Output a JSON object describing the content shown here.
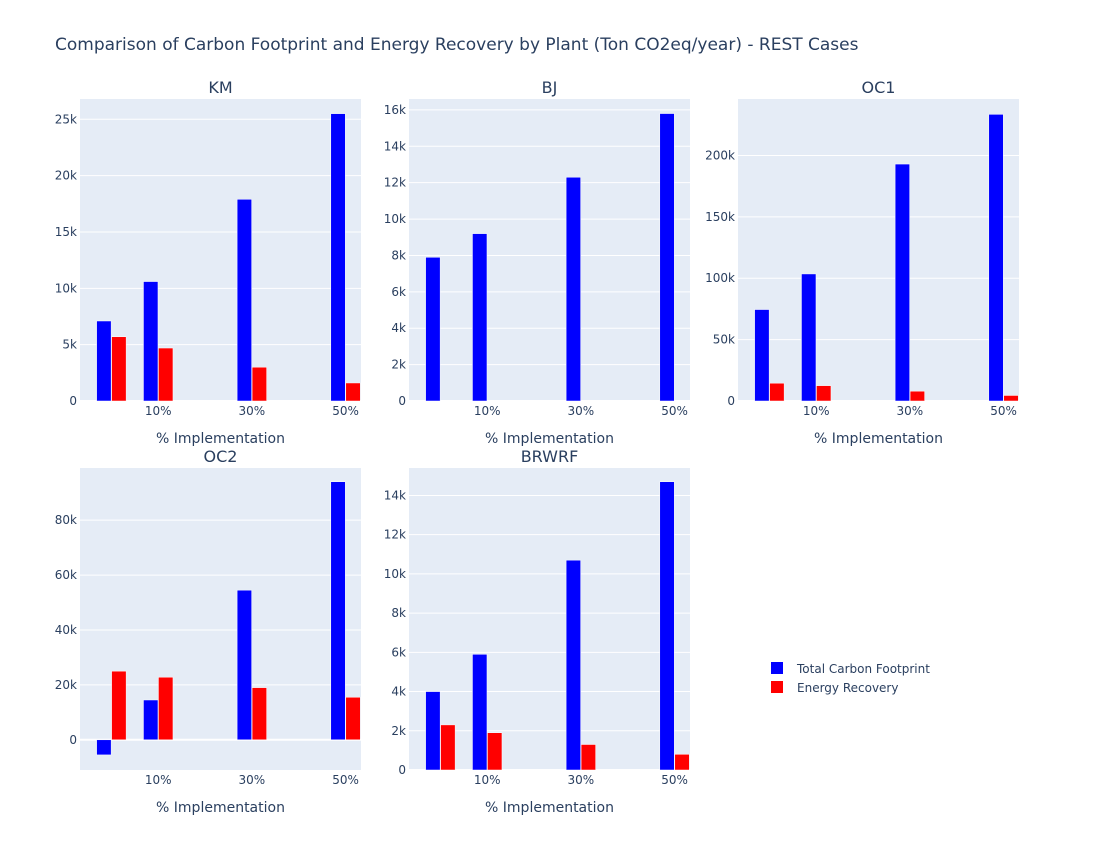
{
  "title": "Comparison of Carbon Footprint and Energy Recovery by Plant (Ton CO2eq/year) - REST Cases",
  "colors": {
    "Total Carbon Footprint": "#0000ff",
    "Energy Recovery": "#ff0000",
    "plot_bg": "#e5ecf6",
    "grid": "#ffffff",
    "text": "#2a3f5f"
  },
  "legend": {
    "items": [
      "Total Carbon Footprint",
      "Energy Recovery"
    ],
    "placement": "right"
  },
  "chart_data": [
    {
      "type": "bar",
      "title": "KM",
      "xlabel": "% Implementation",
      "categories": [
        "0%",
        "10%",
        "30%",
        "50%"
      ],
      "x_values": [
        0,
        10,
        30,
        50
      ],
      "x_tick_labels": [
        "10%",
        "30%",
        "50%"
      ],
      "ylim": [
        0,
        26800
      ],
      "yticks": [
        0,
        5000,
        10000,
        15000,
        20000,
        25000
      ],
      "ytick_labels": [
        "0",
        "5k",
        "10k",
        "15k",
        "20k",
        "25k"
      ],
      "series": [
        {
          "name": "Total Carbon Footprint",
          "values": [
            7100,
            10600,
            17900,
            25500
          ]
        },
        {
          "name": "Energy Recovery",
          "values": [
            5700,
            4700,
            3000,
            1600
          ]
        }
      ]
    },
    {
      "type": "bar",
      "title": "BJ",
      "xlabel": "% Implementation",
      "categories": [
        "0%",
        "10%",
        "30%",
        "50%"
      ],
      "x_values": [
        0,
        10,
        30,
        50
      ],
      "x_tick_labels": [
        "10%",
        "30%",
        "50%"
      ],
      "ylim": [
        0,
        16600
      ],
      "yticks": [
        0,
        2000,
        4000,
        6000,
        8000,
        10000,
        12000,
        14000,
        16000
      ],
      "ytick_labels": [
        "0",
        "2k",
        "4k",
        "6k",
        "8k",
        "10k",
        "12k",
        "14k",
        "16k"
      ],
      "series": [
        {
          "name": "Total Carbon Footprint",
          "values": [
            7900,
            9200,
            12300,
            15800
          ]
        },
        {
          "name": "Energy Recovery",
          "values": [
            0,
            0,
            0,
            0
          ]
        }
      ]
    },
    {
      "type": "bar",
      "title": "OC1",
      "xlabel": "% Implementation",
      "categories": [
        "0%",
        "10%",
        "30%",
        "50%"
      ],
      "x_values": [
        0,
        10,
        30,
        50
      ],
      "x_tick_labels": [
        "10%",
        "30%",
        "50%"
      ],
      "ylim": [
        0,
        246000
      ],
      "yticks": [
        0,
        50000,
        100000,
        150000,
        200000
      ],
      "ytick_labels": [
        "0",
        "50k",
        "100k",
        "150k",
        "200k"
      ],
      "series": [
        {
          "name": "Total Carbon Footprint",
          "values": [
            74500,
            103500,
            193000,
            233500
          ]
        },
        {
          "name": "Energy Recovery",
          "values": [
            14500,
            12500,
            8000,
            4500
          ]
        }
      ]
    },
    {
      "type": "bar",
      "title": "OC2",
      "xlabel": "% Implementation",
      "categories": [
        "0%",
        "10%",
        "30%",
        "50%"
      ],
      "x_values": [
        0,
        10,
        30,
        50
      ],
      "x_tick_labels": [
        "10%",
        "30%",
        "50%"
      ],
      "ylim": [
        -11000,
        99000
      ],
      "yticks": [
        0,
        20000,
        40000,
        60000,
        80000
      ],
      "ytick_labels": [
        "0",
        "20k",
        "40k",
        "60k",
        "80k"
      ],
      "series": [
        {
          "name": "Total Carbon Footprint",
          "values": [
            -5500,
            14500,
            54500,
            94000
          ]
        },
        {
          "name": "Energy Recovery",
          "values": [
            25000,
            22800,
            19000,
            15500
          ]
        }
      ]
    },
    {
      "type": "bar",
      "title": "BRWRF",
      "xlabel": "% Implementation",
      "categories": [
        "0%",
        "10%",
        "30%",
        "50%"
      ],
      "x_values": [
        0,
        10,
        30,
        50
      ],
      "x_tick_labels": [
        "10%",
        "30%",
        "50%"
      ],
      "ylim": [
        0,
        15400
      ],
      "yticks": [
        0,
        2000,
        4000,
        6000,
        8000,
        10000,
        12000,
        14000
      ],
      "ytick_labels": [
        "0",
        "2k",
        "4k",
        "6k",
        "8k",
        "10k",
        "12k",
        "14k"
      ],
      "series": [
        {
          "name": "Total Carbon Footprint",
          "values": [
            4000,
            5900,
            10700,
            14700
          ]
        },
        {
          "name": "Energy Recovery",
          "values": [
            2300,
            1900,
            1300,
            800
          ]
        }
      ]
    }
  ]
}
